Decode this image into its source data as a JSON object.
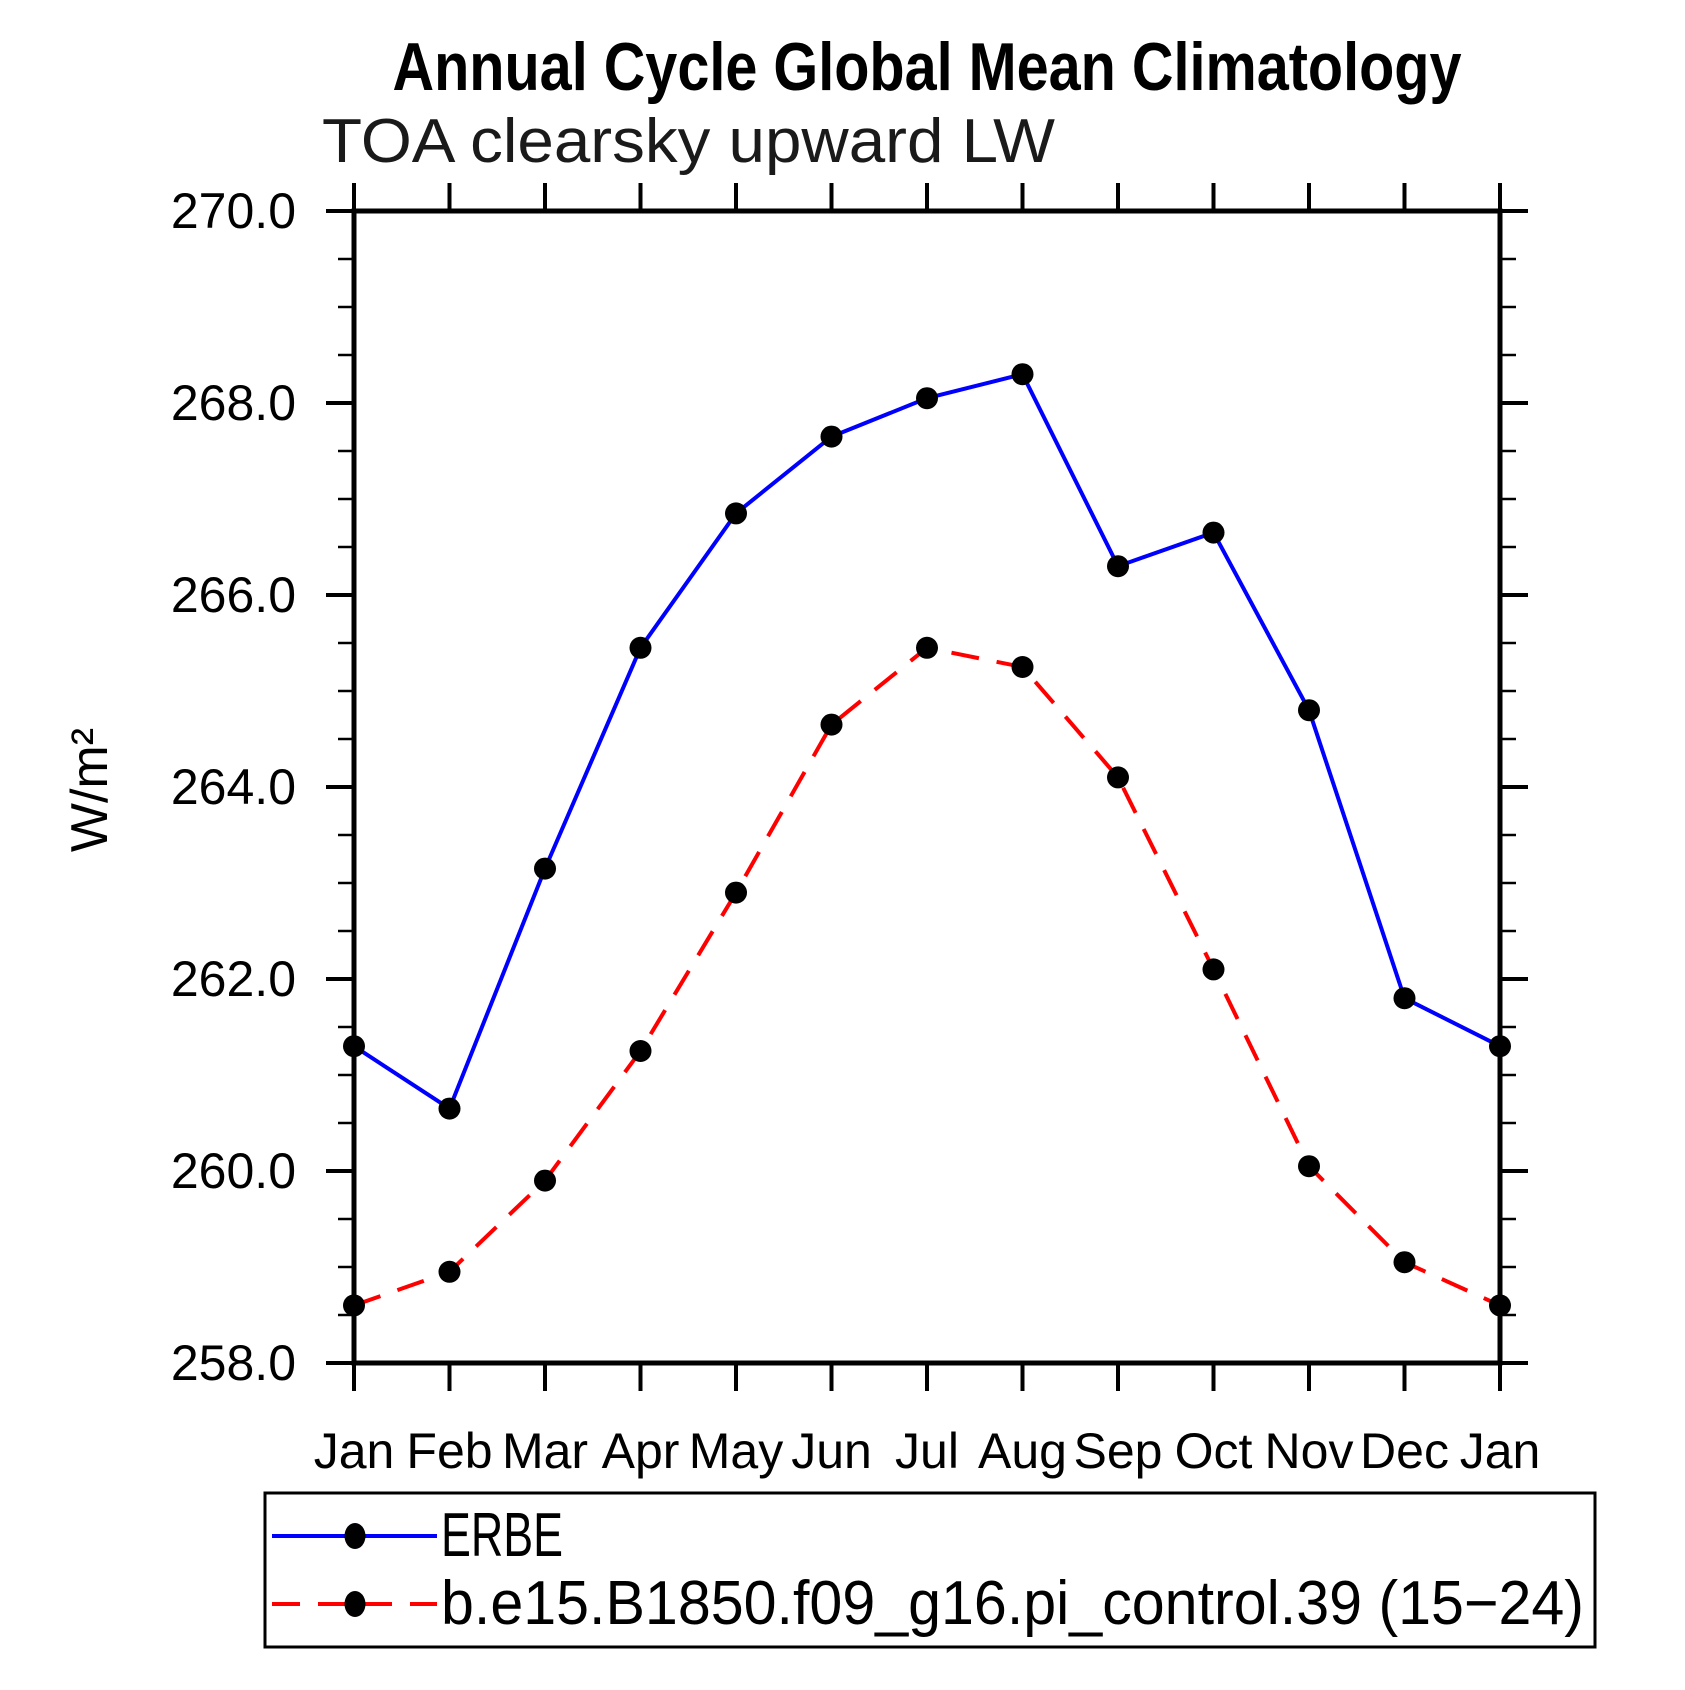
{
  "title": "Annual Cycle Global Mean Climatology",
  "subtitle": "TOA clearsky upward LW",
  "ylabel": "W/m²",
  "chart_data": {
    "type": "line",
    "categories": [
      "Jan",
      "Feb",
      "Mar",
      "Apr",
      "May",
      "Jun",
      "Jul",
      "Aug",
      "Sep",
      "Oct",
      "Nov",
      "Dec",
      "Jan"
    ],
    "series": [
      {
        "name": "ERBE",
        "color": "#0000ff",
        "line_style": "solid",
        "values": [
          261.3,
          260.65,
          263.15,
          265.45,
          266.85,
          267.65,
          268.05,
          268.3,
          266.3,
          266.65,
          264.8,
          261.8,
          261.3
        ]
      },
      {
        "name": "b.e15.B1850.f09_g16.pi_control.39 (15−24)",
        "color": "#ff0000",
        "line_style": "dashed",
        "values": [
          258.6,
          258.95,
          259.9,
          261.25,
          262.9,
          264.65,
          265.45,
          265.25,
          264.1,
          262.1,
          260.05,
          259.05,
          258.6
        ]
      }
    ],
    "ylim": [
      258.0,
      270.0
    ],
    "ytick_major_step": 2.0,
    "ytick_minor_step": 0.5,
    "ytick_labels": [
      "258.0",
      "260.0",
      "262.0",
      "264.0",
      "266.0",
      "268.0",
      "270.0"
    ],
    "marker": {
      "shape": "filled-circle",
      "color": "#000000"
    },
    "grid": "off",
    "legend_position": "bottom-left"
  }
}
